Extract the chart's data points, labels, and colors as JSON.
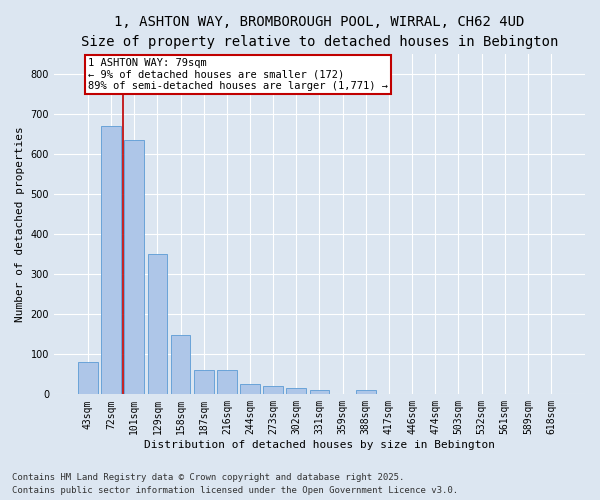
{
  "title_line1": "1, ASHTON WAY, BROMBOROUGH POOL, WIRRAL, CH62 4UD",
  "title_line2": "Size of property relative to detached houses in Bebington",
  "xlabel": "Distribution of detached houses by size in Bebington",
  "ylabel": "Number of detached properties",
  "categories": [
    "43sqm",
    "72sqm",
    "101sqm",
    "129sqm",
    "158sqm",
    "187sqm",
    "216sqm",
    "244sqm",
    "273sqm",
    "302sqm",
    "331sqm",
    "359sqm",
    "388sqm",
    "417sqm",
    "446sqm",
    "474sqm",
    "503sqm",
    "532sqm",
    "561sqm",
    "589sqm",
    "618sqm"
  ],
  "values": [
    80,
    670,
    635,
    350,
    148,
    60,
    60,
    25,
    20,
    15,
    10,
    2,
    10,
    0,
    0,
    0,
    0,
    0,
    0,
    0,
    0
  ],
  "bar_color": "#aec6e8",
  "bar_edge_color": "#5b9bd5",
  "vline_x": 1.5,
  "vline_color": "#c00000",
  "annotation_text": "1 ASHTON WAY: 79sqm\n← 9% of detached houses are smaller (172)\n89% of semi-detached houses are larger (1,771) →",
  "annotation_box_color": "#ffffff",
  "annotation_box_edge": "#c00000",
  "ylim": [
    0,
    850
  ],
  "yticks": [
    0,
    100,
    200,
    300,
    400,
    500,
    600,
    700,
    800
  ],
  "background_color": "#dce6f1",
  "plot_bg_color": "#dce6f1",
  "footer_line1": "Contains HM Land Registry data © Crown copyright and database right 2025.",
  "footer_line2": "Contains public sector information licensed under the Open Government Licence v3.0.",
  "title_fontsize": 10,
  "subtitle_fontsize": 9,
  "axis_label_fontsize": 8,
  "tick_fontsize": 7,
  "annotation_fontsize": 7.5,
  "footer_fontsize": 6.5
}
